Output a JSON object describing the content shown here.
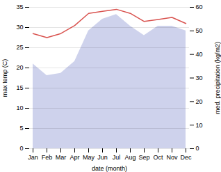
{
  "chart_data": {
    "type": "line",
    "categories": [
      "Jan",
      "Feb",
      "Mar",
      "Apr",
      "May",
      "Jun",
      "Jul",
      "Aug",
      "Sep",
      "Oct",
      "Nov",
      "Dec"
    ],
    "xlabel": "date (month)",
    "ylabel": "max temp (C)",
    "y2label": "med. precipitation (kg/m2)",
    "ylim": [
      0,
      35
    ],
    "yticks": [
      0,
      5,
      10,
      15,
      20,
      25,
      30,
      35
    ],
    "y2lim": [
      0,
      60
    ],
    "y2ticks": [
      0,
      10,
      20,
      30,
      40,
      50,
      60
    ],
    "grid": true,
    "series": [
      {
        "type": "area",
        "axis": "y2",
        "color": "#c5cae9",
        "values": [
          36,
          31,
          32,
          37,
          50,
          55,
          57,
          52,
          48,
          52,
          52,
          50
        ]
      },
      {
        "type": "line",
        "color": "#d9534f",
        "values": [
          28.5,
          27.5,
          28.5,
          30.5,
          33.5,
          34.0,
          34.5,
          33.5,
          31.5,
          32.0,
          32.5,
          31.0
        ]
      }
    ]
  }
}
